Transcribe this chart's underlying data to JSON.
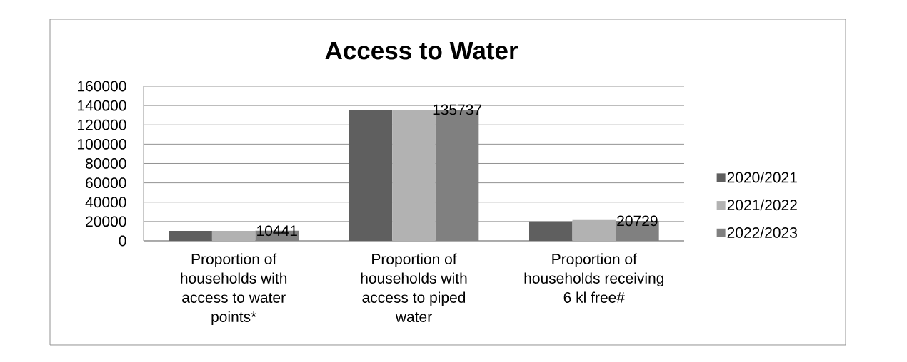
{
  "chart_data": {
    "type": "bar",
    "title": "Access to Water",
    "categories": [
      "Proportion of households with access to water points*",
      "Proportion of households with access to piped water",
      "Proportion of households receiving 6 kl free#"
    ],
    "series": [
      {
        "name": "2020/2021",
        "color": "#5f5f5f",
        "values": [
          10400,
          135700,
          20000
        ]
      },
      {
        "name": "2021/2022",
        "color": "#b2b2b2",
        "values": [
          10400,
          135700,
          21500
        ]
      },
      {
        "name": "2022/2023",
        "color": "#808080",
        "values": [
          10441,
          135737,
          20729
        ],
        "value_labels": [
          "10441",
          "135737",
          "20729"
        ]
      }
    ],
    "ylim": [
      0,
      160000
    ],
    "yticks": [
      0,
      20000,
      40000,
      60000,
      80000,
      100000,
      120000,
      140000,
      160000
    ],
    "grid": "y",
    "legend": "right"
  }
}
